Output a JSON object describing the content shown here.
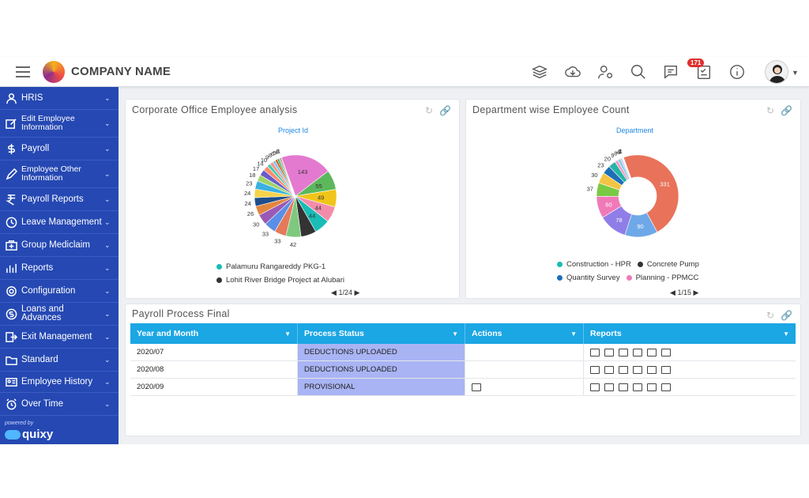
{
  "app": {
    "company_name": "COMPANY NAME",
    "notification_count": "171"
  },
  "sidebar": {
    "items": [
      {
        "label": "HRIS",
        "icon": "person-icon"
      },
      {
        "label": "Edit Employee Information",
        "icon": "edit-icon"
      },
      {
        "label": "Payroll",
        "icon": "dollar-icon"
      },
      {
        "label": "Employee Other Information",
        "icon": "pencil-icon"
      },
      {
        "label": "Payroll Reports",
        "icon": "rupee-icon"
      },
      {
        "label": "Leave Management",
        "icon": "clock-icon"
      },
      {
        "label": "Group Mediclaim",
        "icon": "medical-icon"
      },
      {
        "label": "Reports",
        "icon": "reports-icon"
      },
      {
        "label": "Configuration",
        "icon": "gear-icon"
      },
      {
        "label": "Loans and Advances",
        "icon": "coin-icon"
      },
      {
        "label": "Exit Management",
        "icon": "exit-icon"
      },
      {
        "label": "Standard",
        "icon": "folder-icon"
      },
      {
        "label": "Employee History",
        "icon": "id-card-icon"
      },
      {
        "label": "Over Time",
        "icon": "alarm-icon"
      }
    ],
    "powered_by": "powered by",
    "brand": "quixy"
  },
  "panel1": {
    "title": "Corporate Office Employee analysis",
    "chart_subtitle": "Project Id",
    "legend": [
      "Palamuru Rangareddy PKG-1",
      "Lohit River Bridge Project at Alubari"
    ],
    "pager": "1/24"
  },
  "panel2": {
    "title": "Department wise Employee Count",
    "chart_subtitle": "Department",
    "legend": [
      "Construction - HPR",
      "Concrete Pump",
      "Quantity Survey",
      "Planning - PPMCC"
    ],
    "pager": "1/15"
  },
  "payroll": {
    "title": "Payroll Process Final",
    "columns": [
      "Year and Month",
      "Process Status",
      "Actions",
      "Reports"
    ],
    "rows": [
      {
        "month": "2020/07",
        "status": "DEDUCTIONS UPLOADED",
        "has_action": false
      },
      {
        "month": "2020/08",
        "status": "DEDUCTIONS UPLOADED",
        "has_action": false
      },
      {
        "month": "2020/09",
        "status": "PROVISIONAL",
        "has_action": true
      }
    ]
  },
  "chart_data": [
    {
      "type": "pie",
      "title": "Project Id",
      "values": [
        143,
        55,
        49,
        44,
        44,
        43,
        42,
        33,
        33,
        30,
        26,
        24,
        24,
        23,
        18,
        17,
        14,
        10,
        9,
        8,
        6,
        5,
        4,
        3,
        1
      ],
      "colors": [
        "#e37ad0",
        "#5cb85c",
        "#f0c419",
        "#f38cab",
        "#1abcb6",
        "#333333",
        "#7fc97f",
        "#e57a5a",
        "#5b8ee6",
        "#9b59b6",
        "#e2863f",
        "#1f4e8c",
        "#f7d24b",
        "#3cb1e0",
        "#a0d468",
        "#6a5acd",
        "#ff8c69",
        "#48c9b0",
        "#f1948a",
        "#85c1e9",
        "#d35400",
        "#27ae60",
        "#95a5a6",
        "#c0392b",
        "#8e44ad"
      ]
    },
    {
      "type": "pie",
      "title": "Department",
      "values": [
        331,
        90,
        78,
        60,
        37,
        30,
        23,
        20,
        9,
        8,
        4,
        2,
        1,
        1,
        1
      ],
      "colors": [
        "#e8735a",
        "#6fa8e8",
        "#8f7ee8",
        "#f07ab8",
        "#7ac943",
        "#f3c443",
        "#1d6fb8",
        "#26b5a5",
        "#f29bc4",
        "#7fd0e9",
        "#c6b3f0",
        "#f5a25d",
        "#8fd19e",
        "#e8d06b",
        "#bbbbbb"
      ]
    }
  ]
}
